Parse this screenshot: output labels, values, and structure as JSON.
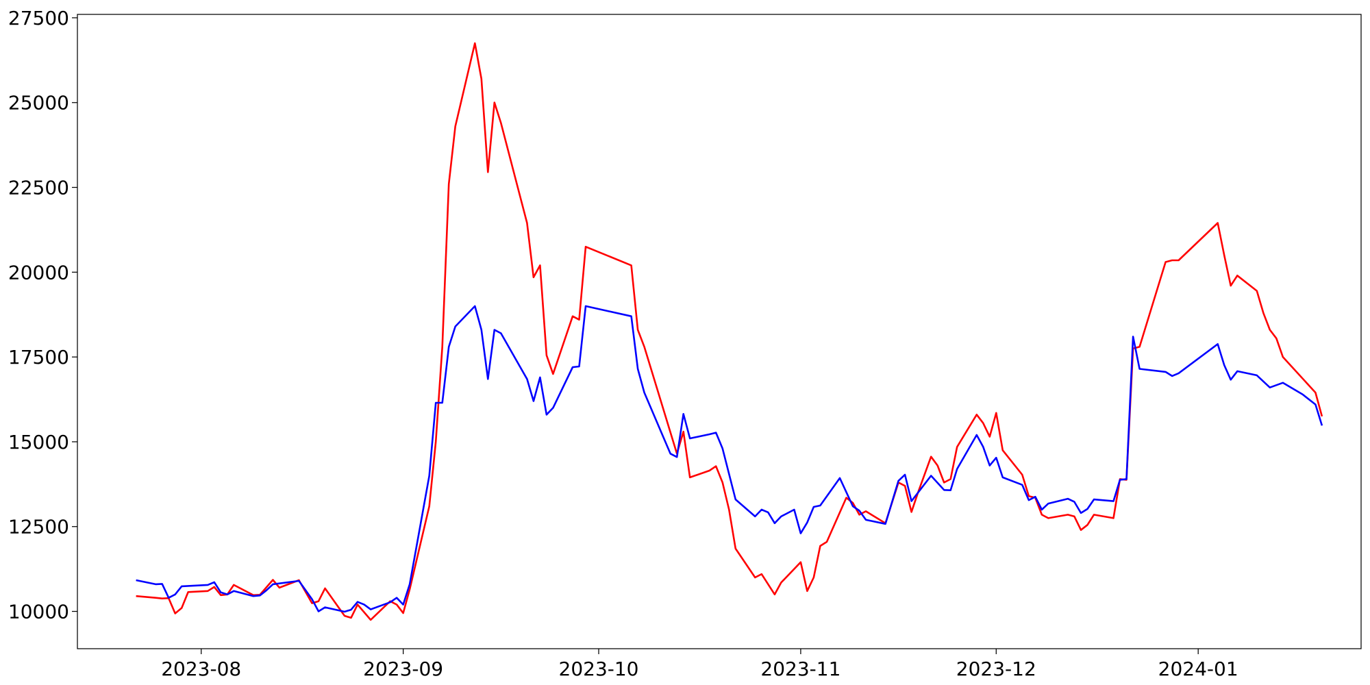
{
  "chart_data": {
    "type": "line",
    "title": "",
    "xlabel": "",
    "ylabel": "",
    "grid": false,
    "legend": "none",
    "xlim": [
      "2023-07-13",
      "2024-01-26"
    ],
    "ylim": [
      8900,
      27600
    ],
    "x_ticks": [
      {
        "date": "2023-08-01",
        "label": "2023-08"
      },
      {
        "date": "2023-09-01",
        "label": "2023-09"
      },
      {
        "date": "2023-10-01",
        "label": "2023-10"
      },
      {
        "date": "2023-11-01",
        "label": "2023-11"
      },
      {
        "date": "2023-12-01",
        "label": "2023-12"
      },
      {
        "date": "2024-01-01",
        "label": "2024-01"
      }
    ],
    "y_ticks": [
      10000,
      12500,
      15000,
      17500,
      20000,
      22500,
      25000,
      27500
    ],
    "series": [
      {
        "color": "#ff0000",
        "points": [
          [
            "2023-07-22",
            10450
          ],
          [
            "2023-07-25",
            10400
          ],
          [
            "2023-07-26",
            10380
          ],
          [
            "2023-07-27",
            10390
          ],
          [
            "2023-07-28",
            9940
          ],
          [
            "2023-07-29",
            10100
          ],
          [
            "2023-07-30",
            10570
          ],
          [
            "2023-08-02",
            10600
          ],
          [
            "2023-08-03",
            10720
          ],
          [
            "2023-08-04",
            10480
          ],
          [
            "2023-08-05",
            10500
          ],
          [
            "2023-08-06",
            10780
          ],
          [
            "2023-08-09",
            10480
          ],
          [
            "2023-08-10",
            10490
          ],
          [
            "2023-08-12",
            10930
          ],
          [
            "2023-08-13",
            10700
          ],
          [
            "2023-08-16",
            10920
          ],
          [
            "2023-08-18",
            10240
          ],
          [
            "2023-08-19",
            10300
          ],
          [
            "2023-08-20",
            10680
          ],
          [
            "2023-08-23",
            9870
          ],
          [
            "2023-08-24",
            9810
          ],
          [
            "2023-08-25",
            10200
          ],
          [
            "2023-08-27",
            9750
          ],
          [
            "2023-08-30",
            10300
          ],
          [
            "2023-08-31",
            10200
          ],
          [
            "2023-09-01",
            9950
          ],
          [
            "2023-09-02",
            10650
          ],
          [
            "2023-09-05",
            13100
          ],
          [
            "2023-09-06",
            15000
          ],
          [
            "2023-09-07",
            17800
          ],
          [
            "2023-09-08",
            22600
          ],
          [
            "2023-09-09",
            24300
          ],
          [
            "2023-09-12",
            26750
          ],
          [
            "2023-09-13",
            25700
          ],
          [
            "2023-09-14",
            22950
          ],
          [
            "2023-09-15",
            25000
          ],
          [
            "2023-09-16",
            24400
          ],
          [
            "2023-09-20",
            21450
          ],
          [
            "2023-09-21",
            19850
          ],
          [
            "2023-09-22",
            20200
          ],
          [
            "2023-09-23",
            17550
          ],
          [
            "2023-09-24",
            17000
          ],
          [
            "2023-09-27",
            18700
          ],
          [
            "2023-09-28",
            18600
          ],
          [
            "2023-09-29",
            20750
          ],
          [
            "2023-10-06",
            20200
          ],
          [
            "2023-10-07",
            18300
          ],
          [
            "2023-10-08",
            17800
          ],
          [
            "2023-10-13",
            14650
          ],
          [
            "2023-10-14",
            15300
          ],
          [
            "2023-10-15",
            13950
          ],
          [
            "2023-10-18",
            14150
          ],
          [
            "2023-10-19",
            14280
          ],
          [
            "2023-10-20",
            13800
          ],
          [
            "2023-10-21",
            13000
          ],
          [
            "2023-10-22",
            11850
          ],
          [
            "2023-10-25",
            11000
          ],
          [
            "2023-10-26",
            11100
          ],
          [
            "2023-10-28",
            10500
          ],
          [
            "2023-10-29",
            10850
          ],
          [
            "2023-11-01",
            11450
          ],
          [
            "2023-11-02",
            10600
          ],
          [
            "2023-11-03",
            11000
          ],
          [
            "2023-11-04",
            11930
          ],
          [
            "2023-11-05",
            12050
          ],
          [
            "2023-11-08",
            13350
          ],
          [
            "2023-11-09",
            13200
          ],
          [
            "2023-11-10",
            12850
          ],
          [
            "2023-11-11",
            12950
          ],
          [
            "2023-11-14",
            12600
          ],
          [
            "2023-11-16",
            13800
          ],
          [
            "2023-11-17",
            13700
          ],
          [
            "2023-11-18",
            12930
          ],
          [
            "2023-11-19",
            13500
          ],
          [
            "2023-11-21",
            14560
          ],
          [
            "2023-11-22",
            14300
          ],
          [
            "2023-11-23",
            13800
          ],
          [
            "2023-11-24",
            13900
          ],
          [
            "2023-11-25",
            14850
          ],
          [
            "2023-11-28",
            15800
          ],
          [
            "2023-11-29",
            15550
          ],
          [
            "2023-11-30",
            15150
          ],
          [
            "2023-12-01",
            15850
          ],
          [
            "2023-12-02",
            14750
          ],
          [
            "2023-12-05",
            14030
          ],
          [
            "2023-12-06",
            13400
          ],
          [
            "2023-12-07",
            13350
          ],
          [
            "2023-12-08",
            12850
          ],
          [
            "2023-12-09",
            12750
          ],
          [
            "2023-12-12",
            12850
          ],
          [
            "2023-12-13",
            12800
          ],
          [
            "2023-12-14",
            12400
          ],
          [
            "2023-12-15",
            12550
          ],
          [
            "2023-12-16",
            12850
          ],
          [
            "2023-12-19",
            12750
          ],
          [
            "2023-12-20",
            13900
          ],
          [
            "2023-12-21",
            13880
          ],
          [
            "2023-12-22",
            17750
          ],
          [
            "2023-12-23",
            17800
          ],
          [
            "2023-12-27",
            20300
          ],
          [
            "2023-12-28",
            20350
          ],
          [
            "2023-12-29",
            20350
          ],
          [
            "2024-01-04",
            21450
          ],
          [
            "2024-01-05",
            20500
          ],
          [
            "2024-01-06",
            19600
          ],
          [
            "2024-01-07",
            19900
          ],
          [
            "2024-01-10",
            19450
          ],
          [
            "2024-01-11",
            18800
          ],
          [
            "2024-01-12",
            18300
          ],
          [
            "2024-01-13",
            18050
          ],
          [
            "2024-01-14",
            17500
          ],
          [
            "2024-01-19",
            16450
          ],
          [
            "2024-01-20",
            15750
          ]
        ]
      },
      {
        "color": "#0000ff",
        "points": [
          [
            "2023-07-22",
            10920
          ],
          [
            "2023-07-25",
            10800
          ],
          [
            "2023-07-26",
            10810
          ],
          [
            "2023-07-27",
            10400
          ],
          [
            "2023-07-28",
            10500
          ],
          [
            "2023-07-29",
            10740
          ],
          [
            "2023-08-02",
            10780
          ],
          [
            "2023-08-03",
            10860
          ],
          [
            "2023-08-04",
            10560
          ],
          [
            "2023-08-05",
            10500
          ],
          [
            "2023-08-06",
            10600
          ],
          [
            "2023-08-09",
            10450
          ],
          [
            "2023-08-10",
            10470
          ],
          [
            "2023-08-11",
            10620
          ],
          [
            "2023-08-12",
            10800
          ],
          [
            "2023-08-16",
            10900
          ],
          [
            "2023-08-18",
            10360
          ],
          [
            "2023-08-19",
            10000
          ],
          [
            "2023-08-20",
            10120
          ],
          [
            "2023-08-23",
            9990
          ],
          [
            "2023-08-24",
            10050
          ],
          [
            "2023-08-25",
            10280
          ],
          [
            "2023-08-26",
            10200
          ],
          [
            "2023-08-27",
            10060
          ],
          [
            "2023-08-30",
            10270
          ],
          [
            "2023-08-31",
            10400
          ],
          [
            "2023-09-01",
            10200
          ],
          [
            "2023-09-02",
            10800
          ],
          [
            "2023-09-05",
            14000
          ],
          [
            "2023-09-06",
            16150
          ],
          [
            "2023-09-07",
            16150
          ],
          [
            "2023-09-08",
            17800
          ],
          [
            "2023-09-09",
            18400
          ],
          [
            "2023-09-12",
            19000
          ],
          [
            "2023-09-13",
            18300
          ],
          [
            "2023-09-14",
            16850
          ],
          [
            "2023-09-15",
            18300
          ],
          [
            "2023-09-16",
            18200
          ],
          [
            "2023-09-20",
            16850
          ],
          [
            "2023-09-21",
            16200
          ],
          [
            "2023-09-22",
            16900
          ],
          [
            "2023-09-23",
            15800
          ],
          [
            "2023-09-24",
            16000
          ],
          [
            "2023-09-27",
            17200
          ],
          [
            "2023-09-28",
            17220
          ],
          [
            "2023-09-29",
            19000
          ],
          [
            "2023-10-06",
            18700
          ],
          [
            "2023-10-07",
            17150
          ],
          [
            "2023-10-08",
            16450
          ],
          [
            "2023-10-12",
            14650
          ],
          [
            "2023-10-13",
            14550
          ],
          [
            "2023-10-14",
            15820
          ],
          [
            "2023-10-15",
            15100
          ],
          [
            "2023-10-18",
            15220
          ],
          [
            "2023-10-19",
            15270
          ],
          [
            "2023-10-20",
            14800
          ],
          [
            "2023-10-22",
            13300
          ],
          [
            "2023-10-25",
            12800
          ],
          [
            "2023-10-26",
            13000
          ],
          [
            "2023-10-27",
            12920
          ],
          [
            "2023-10-28",
            12600
          ],
          [
            "2023-10-29",
            12800
          ],
          [
            "2023-10-31",
            13000
          ],
          [
            "2023-11-01",
            12300
          ],
          [
            "2023-11-02",
            12620
          ],
          [
            "2023-11-03",
            13080
          ],
          [
            "2023-11-04",
            13120
          ],
          [
            "2023-11-07",
            13930
          ],
          [
            "2023-11-09",
            13100
          ],
          [
            "2023-11-10",
            12970
          ],
          [
            "2023-11-11",
            12700
          ],
          [
            "2023-11-14",
            12580
          ],
          [
            "2023-11-16",
            13850
          ],
          [
            "2023-11-17",
            14030
          ],
          [
            "2023-11-18",
            13250
          ],
          [
            "2023-11-21",
            14000
          ],
          [
            "2023-11-23",
            13580
          ],
          [
            "2023-11-24",
            13570
          ],
          [
            "2023-11-25",
            14200
          ],
          [
            "2023-11-28",
            15200
          ],
          [
            "2023-11-29",
            14850
          ],
          [
            "2023-11-30",
            14300
          ],
          [
            "2023-12-01",
            14530
          ],
          [
            "2023-12-02",
            13950
          ],
          [
            "2023-12-05",
            13730
          ],
          [
            "2023-12-06",
            13280
          ],
          [
            "2023-12-07",
            13380
          ],
          [
            "2023-12-08",
            13000
          ],
          [
            "2023-12-09",
            13180
          ],
          [
            "2023-12-12",
            13320
          ],
          [
            "2023-12-13",
            13230
          ],
          [
            "2023-12-14",
            12900
          ],
          [
            "2023-12-15",
            13020
          ],
          [
            "2023-12-16",
            13300
          ],
          [
            "2023-12-19",
            13250
          ],
          [
            "2023-12-20",
            13880
          ],
          [
            "2023-12-21",
            13900
          ],
          [
            "2023-12-22",
            18100
          ],
          [
            "2023-12-23",
            17150
          ],
          [
            "2023-12-27",
            17060
          ],
          [
            "2023-12-28",
            16940
          ],
          [
            "2023-12-29",
            17020
          ],
          [
            "2024-01-04",
            17880
          ],
          [
            "2024-01-05",
            17260
          ],
          [
            "2024-01-06",
            16830
          ],
          [
            "2024-01-07",
            17080
          ],
          [
            "2024-01-10",
            16960
          ],
          [
            "2024-01-12",
            16600
          ],
          [
            "2024-01-14",
            16740
          ],
          [
            "2024-01-17",
            16400
          ],
          [
            "2024-01-19",
            16100
          ],
          [
            "2024-01-20",
            15480
          ]
        ]
      }
    ]
  }
}
